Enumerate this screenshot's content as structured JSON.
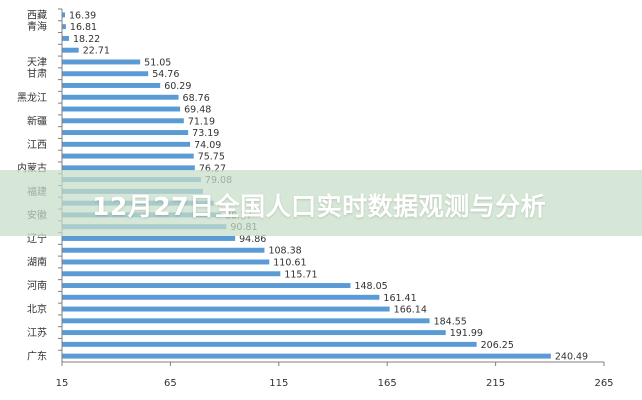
{
  "overlay": {
    "title": "12月27日全国人口实时数据观测与分析"
  },
  "colors": {
    "bar": "#5b9bd5",
    "axis": "#7f7f7f",
    "overlay": "#c8dec8"
  },
  "chart_data": {
    "type": "bar",
    "orientation": "horizontal",
    "categories": [
      "西藏",
      "青海",
      "",
      "",
      "天津",
      "甘肃",
      "",
      "黑龙江",
      "",
      "新疆",
      "",
      "江西",
      "",
      "内蒙古",
      "",
      "福建",
      "",
      "安徽",
      "",
      "辽宁",
      "",
      "湖南",
      "",
      "河南",
      "",
      "北京",
      "",
      "江苏",
      "",
      "广东"
    ],
    "values": [
      16.39,
      16.81,
      18.22,
      22.71,
      51.05,
      54.76,
      60.29,
      68.76,
      69.48,
      71.19,
      73.19,
      74.09,
      75.75,
      76.27,
      79.08,
      80.0,
      85.0,
      88.37,
      90.81,
      94.86,
      108.38,
      110.61,
      115.71,
      148.05,
      161.41,
      166.14,
      184.55,
      191.99,
      206.25,
      240.49
    ],
    "value_labels": [
      "16.39",
      "16.81",
      "18.22",
      "22.71",
      "51.05",
      "54.76",
      "60.29",
      "68.76",
      "69.48",
      "71.19",
      "73.19",
      "74.09",
      "75.75",
      "76.27",
      "79.08",
      "",
      "",
      "88.37",
      "90.81",
      "94.86",
      "108.38",
      "110.61",
      "115.71",
      "148.05",
      "161.41",
      "166.14",
      "184.55",
      "191.99",
      "206.25",
      "240.49"
    ],
    "xlim": [
      15,
      265
    ],
    "xticks": [
      15,
      65,
      115,
      165,
      215,
      265
    ],
    "title": "",
    "xlabel": "",
    "ylabel": "",
    "grid": false,
    "legend": "none"
  }
}
